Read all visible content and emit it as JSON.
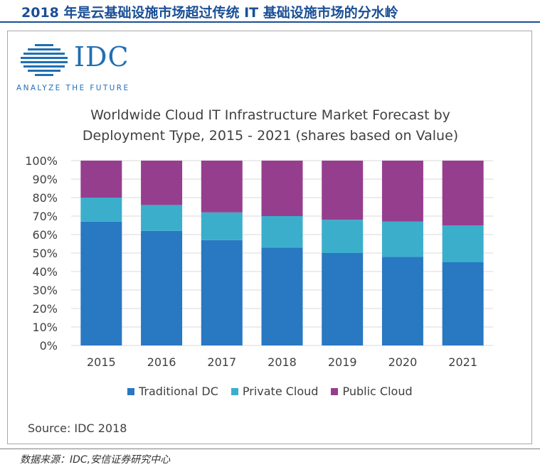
{
  "heading": "2018 年是云基础设施市场超过传统 IT 基础设施市场的分水岭",
  "logo": {
    "name": "IDC",
    "tagline": "ANALYZE THE FUTURE"
  },
  "footer": "数据来源：IDC,安信证券研究中心",
  "colors": {
    "traditional": "#2878c2",
    "private": "#3baecb",
    "public": "#963e8e",
    "heading": "#1a4f96",
    "grid": "#d9d9d9",
    "text": "#404040"
  },
  "chart_data": {
    "type": "bar",
    "stacked": true,
    "title_line1": "Worldwide Cloud IT Infrastructure Market Forecast by",
    "title_line2": "Deployment Type, 2015 - 2021 (shares based on Value)",
    "categories": [
      "2015",
      "2016",
      "2017",
      "2018",
      "2019",
      "2020",
      "2021"
    ],
    "series": [
      {
        "name": "Traditional DC",
        "values": [
          67,
          62,
          57,
          53,
          50,
          48,
          45
        ]
      },
      {
        "name": "Private Cloud",
        "values": [
          13,
          14,
          15,
          17,
          18,
          19,
          20
        ]
      },
      {
        "name": "Public Cloud",
        "values": [
          20,
          24,
          28,
          30,
          32,
          33,
          35
        ]
      }
    ],
    "ylim": [
      0,
      100
    ],
    "yticks": [
      "0%",
      "10%",
      "20%",
      "30%",
      "40%",
      "50%",
      "60%",
      "70%",
      "80%",
      "90%",
      "100%"
    ],
    "grid": true,
    "legend_position": "bottom",
    "source": "Source: IDC 2018"
  }
}
